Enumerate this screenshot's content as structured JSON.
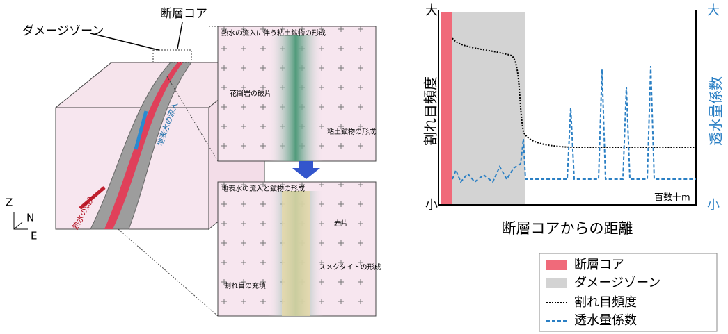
{
  "block": {
    "damage_zone": "ダメージゾーン",
    "fault_core": "断層コア",
    "axis_z": "Z",
    "axis_n": "N",
    "axis_e": "E",
    "hydrothermal": "熱水の流入",
    "surface_water": "地表水の流入"
  },
  "top_panel": {
    "title": "熱水の流入に伴う粘土鉱物の形成",
    "fragments": "花崗岩の破片",
    "clay": "粘土鉱物の形成"
  },
  "bottom_panel": {
    "title": "地表水の流入と鉱物の形成",
    "fragments": "岩片",
    "smectite": "スメクタイトの形成",
    "note": "割れ目の充填"
  },
  "graph": {
    "left_high": "大",
    "left_low": "小",
    "left_label": "割れ目頻度",
    "right_high": "大",
    "right_low": "小",
    "right_label": "透水量係数",
    "distance": "百数十m",
    "x_label": "断層コアからの距離"
  },
  "legend": {
    "items": [
      "断層コア",
      "ダメージゾーン",
      "割れ目頻度",
      "透水量係数"
    ]
  }
}
